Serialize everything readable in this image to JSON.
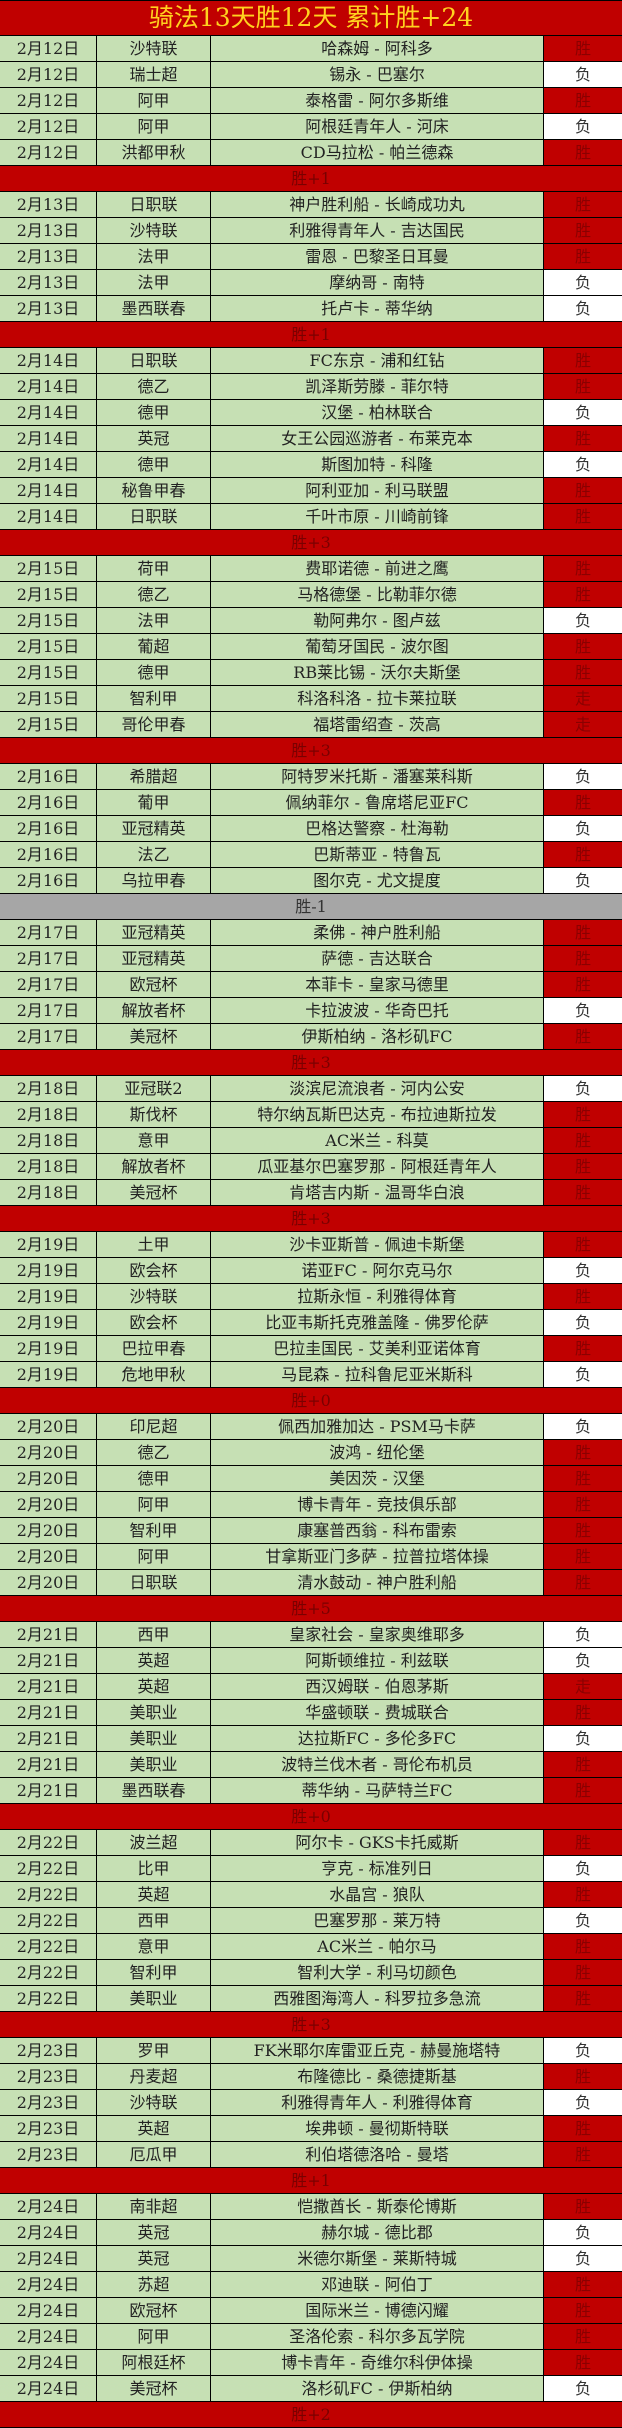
{
  "title": "骑法13天胜12天  累计胜+24",
  "colors": {
    "header_bg": "#c00000",
    "title_text": "#ffd21f",
    "row_bg": "#c6e0b4",
    "win_bg": "#c00000",
    "lose_bg": "#ffffff",
    "neg_summary_bg": "#a6a6a6"
  },
  "groups": [
    {
      "summary": "胜+1",
      "rows": [
        [
          "2月12日",
          "沙特联",
          "哈森姆 - 阿科多",
          "胜"
        ],
        [
          "2月12日",
          "瑞士超",
          "锡永 - 巴塞尔",
          "负"
        ],
        [
          "2月12日",
          "阿甲",
          "泰格雷 - 阿尔多斯维",
          "胜"
        ],
        [
          "2月12日",
          "阿甲",
          "阿根廷青年人 - 河床",
          "负"
        ],
        [
          "2月12日",
          "洪都甲秋",
          "CD马拉松 - 帕兰德森",
          "胜"
        ]
      ]
    },
    {
      "summary": "胜+1",
      "rows": [
        [
          "2月13日",
          "日职联",
          "神户胜利船 - 长崎成功丸",
          "胜"
        ],
        [
          "2月13日",
          "沙特联",
          "利雅得青年人 - 吉达国民",
          "胜"
        ],
        [
          "2月13日",
          "法甲",
          "雷恩 - 巴黎圣日耳曼",
          "胜"
        ],
        [
          "2月13日",
          "法甲",
          "摩纳哥 - 南特",
          "负"
        ],
        [
          "2月13日",
          "墨西联春",
          "托卢卡 - 蒂华纳",
          "负"
        ]
      ]
    },
    {
      "summary": "胜+3",
      "rows": [
        [
          "2月14日",
          "日职联",
          "FC东京 - 浦和红钻",
          "胜"
        ],
        [
          "2月14日",
          "德乙",
          "凯泽斯劳滕 - 菲尔特",
          "胜"
        ],
        [
          "2月14日",
          "德甲",
          "汉堡 - 柏林联合",
          "负"
        ],
        [
          "2月14日",
          "英冠",
          "女王公园巡游者 - 布莱克本",
          "胜"
        ],
        [
          "2月14日",
          "德甲",
          "斯图加特 - 科隆",
          "负"
        ],
        [
          "2月14日",
          "秘鲁甲春",
          "阿利亚加 - 利马联盟",
          "胜"
        ],
        [
          "2月14日",
          "日职联",
          "千叶市原 - 川崎前锋",
          "胜"
        ]
      ]
    },
    {
      "summary": "胜+3",
      "rows": [
        [
          "2月15日",
          "荷甲",
          "费耶诺德 - 前进之鹰",
          "胜"
        ],
        [
          "2月15日",
          "德乙",
          "马格德堡 - 比勒菲尔德",
          "胜"
        ],
        [
          "2月15日",
          "法甲",
          "勒阿弗尔 - 图卢兹",
          "负"
        ],
        [
          "2月15日",
          "葡超",
          "葡萄牙国民 - 波尔图",
          "胜"
        ],
        [
          "2月15日",
          "德甲",
          "RB莱比锡 - 沃尔夫斯堡",
          "胜"
        ],
        [
          "2月15日",
          "智利甲",
          "科洛科洛 - 拉卡莱拉联",
          "走"
        ],
        [
          "2月15日",
          "哥伦甲春",
          "福塔雷绍查 - 茨高",
          "走"
        ]
      ]
    },
    {
      "summary": "胜-1",
      "negative": true,
      "rows": [
        [
          "2月16日",
          "希腊超",
          "阿特罗米托斯 - 潘塞莱科斯",
          "负"
        ],
        [
          "2月16日",
          "葡甲",
          "佩纳菲尔 - 鲁席塔尼亚FC",
          "胜"
        ],
        [
          "2月16日",
          "亚冠精英",
          "巴格达警察 - 杜海勒",
          "负"
        ],
        [
          "2月16日",
          "法乙",
          "巴斯蒂亚 - 特鲁瓦",
          "胜"
        ],
        [
          "2月16日",
          "乌拉甲春",
          "图尔克 - 尤文提度",
          "负"
        ]
      ]
    },
    {
      "summary": "胜+3",
      "rows": [
        [
          "2月17日",
          "亚冠精英",
          "柔佛 - 神户胜利船",
          "胜"
        ],
        [
          "2月17日",
          "亚冠精英",
          "萨德 - 吉达联合",
          "胜"
        ],
        [
          "2月17日",
          "欧冠杯",
          "本菲卡 - 皇家马德里",
          "胜"
        ],
        [
          "2月17日",
          "解放者杯",
          "卡拉波波 - 华奇巴托",
          "负"
        ],
        [
          "2月17日",
          "美冠杯",
          "伊斯柏纳 - 洛杉矶FC",
          "胜"
        ]
      ]
    },
    {
      "summary": "胜+3",
      "rows": [
        [
          "2月18日",
          "亚冠联2",
          "淡滨尼流浪者 - 河内公安",
          "负"
        ],
        [
          "2月18日",
          "斯伐杯",
          "特尔纳瓦斯巴达克 - 布拉迪斯拉发",
          "胜"
        ],
        [
          "2月18日",
          "意甲",
          "AC米兰 - 科莫",
          "胜"
        ],
        [
          "2月18日",
          "解放者杯",
          "瓜亚基尔巴塞罗那 - 阿根廷青年人",
          "胜"
        ],
        [
          "2月18日",
          "美冠杯",
          "肯塔吉内斯 - 温哥华白浪",
          "胜"
        ]
      ]
    },
    {
      "summary": "胜+0",
      "rows": [
        [
          "2月19日",
          "土甲",
          "沙卡亚斯普 - 佩迪卡斯堡",
          "胜"
        ],
        [
          "2月19日",
          "欧会杯",
          "诺亚FC - 阿尔克马尔",
          "负"
        ],
        [
          "2月19日",
          "沙特联",
          "拉斯永恒 - 利雅得体育",
          "胜"
        ],
        [
          "2月19日",
          "欧会杯",
          "比亚韦斯托克雅盖隆 - 佛罗伦萨",
          "负"
        ],
        [
          "2月19日",
          "巴拉甲春",
          "巴拉圭国民 - 艾美利亚诺体育",
          "胜"
        ],
        [
          "2月19日",
          "危地甲秋",
          "马昆森 - 拉科鲁尼亚米斯科",
          "负"
        ]
      ]
    },
    {
      "summary": "胜+5",
      "rows": [
        [
          "2月20日",
          "印尼超",
          "佩西加雅加达 - PSM马卡萨",
          "负"
        ],
        [
          "2月20日",
          "德乙",
          "波鸿 - 纽伦堡",
          "胜"
        ],
        [
          "2月20日",
          "德甲",
          "美因茨 - 汉堡",
          "胜"
        ],
        [
          "2月20日",
          "阿甲",
          "博卡青年 - 竞技俱乐部",
          "胜"
        ],
        [
          "2月20日",
          "智利甲",
          "康塞普西翁 - 科布雷索",
          "胜"
        ],
        [
          "2月20日",
          "阿甲",
          "甘拿斯亚门多萨 - 拉普拉塔体操",
          "胜"
        ],
        [
          "2月20日",
          "日职联",
          "清水鼓动 - 神户胜利船",
          "胜"
        ]
      ]
    },
    {
      "summary": "胜+0",
      "rows": [
        [
          "2月21日",
          "西甲",
          "皇家社会 - 皇家奥维耶多",
          "负"
        ],
        [
          "2月21日",
          "英超",
          "阿斯顿维拉 - 利兹联",
          "负"
        ],
        [
          "2月21日",
          "英超",
          "西汉姆联 - 伯恩茅斯",
          "走"
        ],
        [
          "2月21日",
          "美职业",
          "华盛顿联 - 费城联合",
          "胜"
        ],
        [
          "2月21日",
          "美职业",
          "达拉斯FC - 多伦多FC",
          "负"
        ],
        [
          "2月21日",
          "美职业",
          "波特兰伐木者 - 哥伦布机员",
          "胜"
        ],
        [
          "2月21日",
          "墨西联春",
          "蒂华纳 - 马萨特兰FC",
          "胜"
        ]
      ]
    },
    {
      "summary": "胜+3",
      "rows": [
        [
          "2月22日",
          "波兰超",
          "阿尔卡 - GKS卡托威斯",
          "胜"
        ],
        [
          "2月22日",
          "比甲",
          "亨克 - 标准列日",
          "负"
        ],
        [
          "2月22日",
          "英超",
          "水晶宫 - 狼队",
          "胜"
        ],
        [
          "2月22日",
          "西甲",
          "巴塞罗那 - 莱万特",
          "负"
        ],
        [
          "2月22日",
          "意甲",
          "AC米兰 - 帕尔马",
          "胜"
        ],
        [
          "2月22日",
          "智利甲",
          "智利大学 - 利马切颜色",
          "胜"
        ],
        [
          "2月22日",
          "美职业",
          "西雅图海湾人 - 科罗拉多急流",
          "胜"
        ]
      ]
    },
    {
      "summary": "胜+1",
      "rows": [
        [
          "2月23日",
          "罗甲",
          "FK米耶尔库雷亚丘克 - 赫曼施塔特",
          "负"
        ],
        [
          "2月23日",
          "丹麦超",
          "布隆德比 - 桑德捷斯基",
          "胜"
        ],
        [
          "2月23日",
          "沙特联",
          "利雅得青年人 - 利雅得体育",
          "负"
        ],
        [
          "2月23日",
          "英超",
          "埃弗顿 - 曼彻斯特联",
          "胜"
        ],
        [
          "2月23日",
          "厄瓜甲",
          "利伯塔德洛哈 - 曼塔",
          "胜"
        ]
      ]
    },
    {
      "summary": "胜+2",
      "rows": [
        [
          "2月24日",
          "南非超",
          "恺撒酋长 - 斯泰伦博斯",
          "胜"
        ],
        [
          "2月24日",
          "英冠",
          "赫尔城 - 德比郡",
          "负"
        ],
        [
          "2月24日",
          "英冠",
          "米德尔斯堡 - 莱斯特城",
          "负"
        ],
        [
          "2月24日",
          "苏超",
          "邓迪联 - 阿伯丁",
          "胜"
        ],
        [
          "2月24日",
          "欧冠杯",
          "国际米兰 - 博德闪耀",
          "胜"
        ],
        [
          "2月24日",
          "阿甲",
          "圣洛伦索 - 科尔多瓦学院",
          "胜"
        ],
        [
          "2月24日",
          "阿根廷杯",
          "博卡青年 - 奇维尔科伊体操",
          "胜"
        ],
        [
          "2月24日",
          "美冠杯",
          "洛杉矶FC - 伊斯柏纳",
          "负"
        ]
      ]
    }
  ]
}
